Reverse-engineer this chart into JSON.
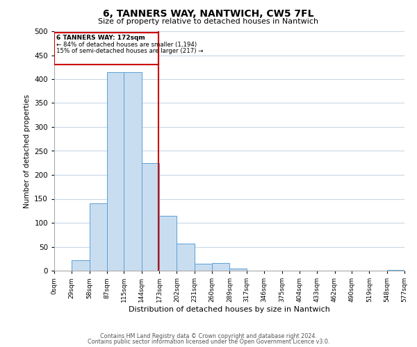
{
  "title": "6, TANNERS WAY, NANTWICH, CW5 7FL",
  "subtitle": "Size of property relative to detached houses in Nantwich",
  "xlabel": "Distribution of detached houses by size in Nantwich",
  "ylabel": "Number of detached properties",
  "bar_edges": [
    0,
    29,
    58,
    87,
    115,
    144,
    173,
    202,
    231,
    260,
    289,
    317,
    346,
    375,
    404,
    433,
    462,
    490,
    519,
    548,
    577
  ],
  "bar_heights": [
    0,
    22,
    140,
    415,
    415,
    225,
    115,
    57,
    14,
    16,
    5,
    0,
    0,
    0,
    0,
    0,
    0,
    0,
    0,
    1
  ],
  "bar_color": "#c9ddf0",
  "bar_edge_color": "#5a9fd4",
  "property_line_x": 172,
  "property_line_color": "#cc0000",
  "annotation_text_lines": [
    "6 TANNERS WAY: 172sqm",
    "← 84% of detached houses are smaller (1,194)",
    "15% of semi-detached houses are larger (217) →"
  ],
  "annotation_box_color": "#cc0000",
  "ylim": [
    0,
    500
  ],
  "xlim": [
    0,
    577
  ],
  "tick_labels": [
    "0sqm",
    "29sqm",
    "58sqm",
    "87sqm",
    "115sqm",
    "144sqm",
    "173sqm",
    "202sqm",
    "231sqm",
    "260sqm",
    "289sqm",
    "317sqm",
    "346sqm",
    "375sqm",
    "404sqm",
    "433sqm",
    "462sqm",
    "490sqm",
    "519sqm",
    "548sqm",
    "577sqm"
  ],
  "tick_positions": [
    0,
    29,
    58,
    87,
    115,
    144,
    173,
    202,
    231,
    260,
    289,
    317,
    346,
    375,
    404,
    433,
    462,
    490,
    519,
    548,
    577
  ],
  "yticks": [
    0,
    50,
    100,
    150,
    200,
    250,
    300,
    350,
    400,
    450,
    500
  ],
  "footer_line1": "Contains HM Land Registry data © Crown copyright and database right 2024.",
  "footer_line2": "Contains public sector information licensed under the Open Government Licence v3.0.",
  "background_color": "#ffffff",
  "grid_color": "#c8d8e8"
}
